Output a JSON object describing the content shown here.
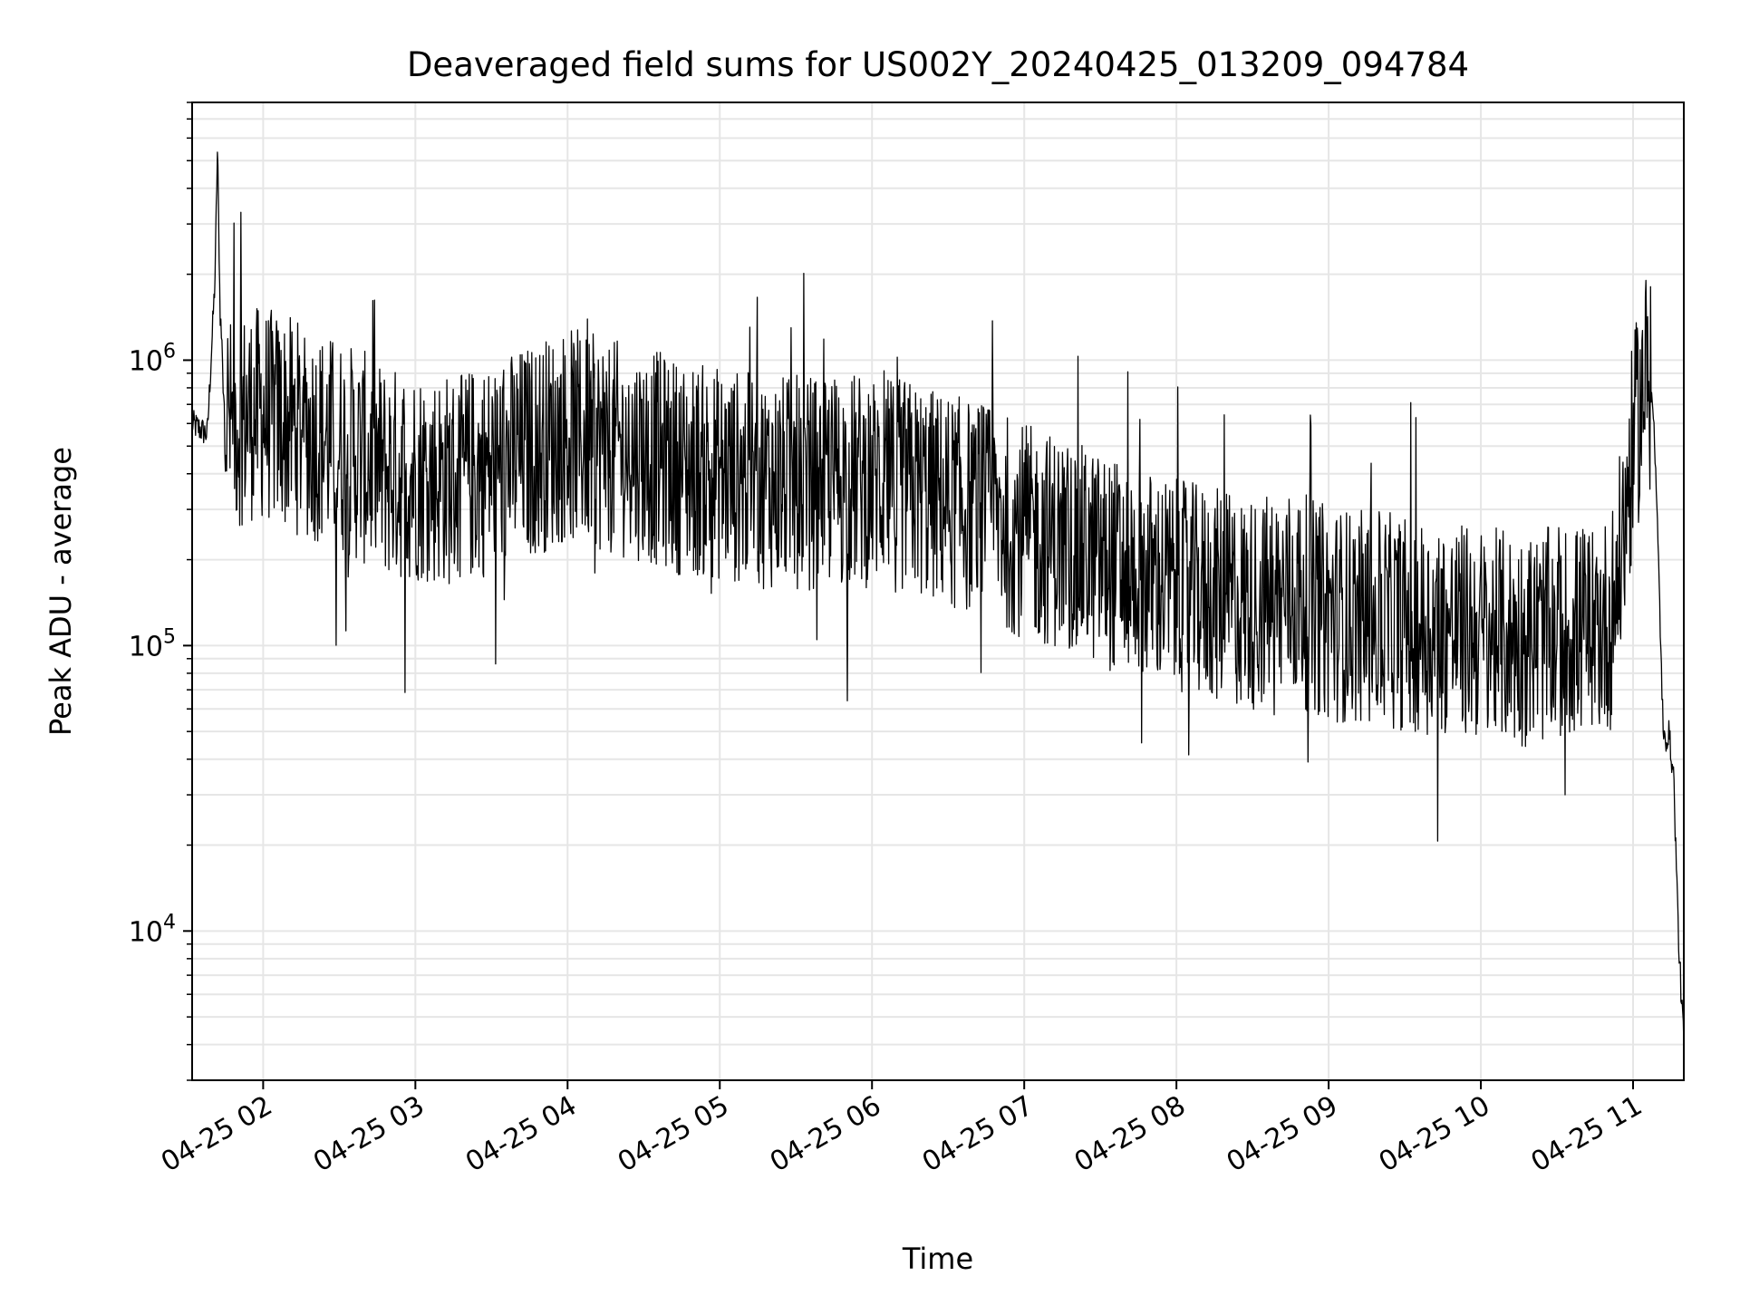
{
  "chart_data": {
    "type": "line",
    "title": "Deaveraged field sums for US002Y_20240425_013209_094784",
    "xlabel": "Time",
    "ylabel": "Peak ADU - average",
    "x_scale": "time",
    "y_scale": "log",
    "xlim": [
      "2024-04-25 01:32",
      "2024-04-25 11:20"
    ],
    "ylim": [
      3000,
      8000000
    ],
    "grid": true,
    "legend": "none",
    "x_ticks": [
      "04-25 02",
      "04-25 03",
      "04-25 04",
      "04-25 05",
      "04-25 06",
      "04-25 07",
      "04-25 08",
      "04-25 09",
      "04-25 10",
      "04-25 11"
    ],
    "y_ticks": [
      {
        "value": 10000,
        "base": "10",
        "exp": "4"
      },
      {
        "value": 100000,
        "base": "10",
        "exp": "5"
      },
      {
        "value": 1000000,
        "base": "10",
        "exp": "6"
      }
    ],
    "line_color": "#000000",
    "series": [
      {
        "values_note_free": true,
        "x": [
          "2024-04-25 01:32",
          "2024-04-25 01:38",
          "2024-04-25 01:41",
          "2024-04-25 01:42",
          "2024-04-25 01:43",
          "2024-04-25 01:45",
          "2024-04-25 01:47",
          "2024-04-25 01:55",
          "2024-04-25 02:00",
          "2024-04-25 02:10",
          "2024-04-25 02:20",
          "2024-04-25 02:30",
          "2024-04-25 02:40",
          "2024-04-25 02:50",
          "2024-04-25 03:00",
          "2024-04-25 03:15",
          "2024-04-25 03:30",
          "2024-04-25 03:45",
          "2024-04-25 04:00",
          "2024-04-25 04:15",
          "2024-04-25 04:30",
          "2024-04-25 04:45",
          "2024-04-25 05:00",
          "2024-04-25 05:15",
          "2024-04-25 05:30",
          "2024-04-25 05:45",
          "2024-04-25 06:00",
          "2024-04-25 06:15",
          "2024-04-25 06:30",
          "2024-04-25 06:45",
          "2024-04-25 07:00",
          "2024-04-25 07:15",
          "2024-04-25 07:30",
          "2024-04-25 07:45",
          "2024-04-25 08:00",
          "2024-04-25 08:15",
          "2024-04-25 08:30",
          "2024-04-25 08:45",
          "2024-04-25 09:00",
          "2024-04-25 09:15",
          "2024-04-25 09:30",
          "2024-04-25 09:45",
          "2024-04-25 10:00",
          "2024-04-25 10:15",
          "2024-04-25 10:30",
          "2024-04-25 10:45",
          "2024-04-25 10:51",
          "2024-04-25 10:55",
          "2024-04-25 11:00",
          "2024-04-25 11:05",
          "2024-04-25 11:08",
          "2024-04-25 11:10",
          "2024-04-25 11:12",
          "2024-04-25 11:14",
          "2024-04-25 11:16",
          "2024-04-25 11:18",
          "2024-04-25 11:20"
        ],
        "y": [
          600000,
          550000,
          1900000,
          5600000,
          1500000,
          700000,
          600000,
          650000,
          650000,
          600000,
          550000,
          500000,
          450000,
          400000,
          400000,
          380000,
          420000,
          480000,
          550000,
          500000,
          470000,
          420000,
          400000,
          380000,
          370000,
          380000,
          380000,
          360000,
          320000,
          300000,
          250000,
          230000,
          200000,
          180000,
          160000,
          150000,
          140000,
          150000,
          130000,
          125000,
          120000,
          115000,
          110000,
          105000,
          110000,
          115000,
          120000,
          200000,
          500000,
          900000,
          700000,
          200000,
          45000,
          50000,
          35000,
          9000,
          4000
        ]
      }
    ],
    "noise_amplitude_decades": 0.38,
    "spike_max": [
      2500000,
      2000000
    ]
  }
}
